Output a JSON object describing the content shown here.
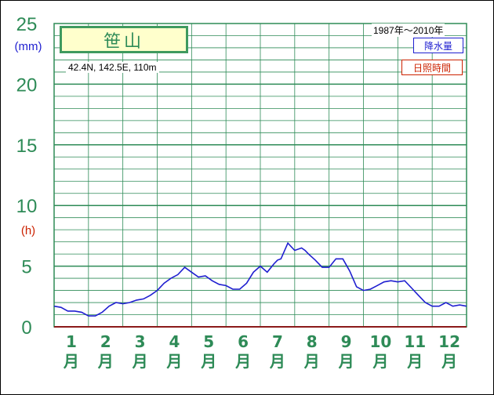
{
  "station": {
    "name": "笹山",
    "coords": "42.4N,  142.5E,  110m",
    "period": "1987年〜2010年"
  },
  "legend": {
    "precipitation": "降水量",
    "sunshine": "日照時間"
  },
  "units": {
    "precip": "(mm)",
    "sunshine": "(h)"
  },
  "colors": {
    "grid": "#2e8b57",
    "precip_line": "#1f1fd0",
    "sunshine_line": "#cc2200",
    "baseline": "#8b1a1a"
  },
  "month_char": "月",
  "chart_data": {
    "type": "line",
    "title": "笹山",
    "xlabel": "",
    "ylabel": "(mm) / (h)",
    "ylim": [
      0,
      25
    ],
    "yticks": [
      "0",
      "5",
      "10",
      "15",
      "20",
      "25"
    ],
    "categories": [
      "1",
      "2",
      "3",
      "4",
      "5",
      "6",
      "7",
      "8",
      "9",
      "10",
      "11",
      "12"
    ],
    "x_range": [
      0.5,
      12.5
    ],
    "grid": true,
    "legend_position": "top-right",
    "series": [
      {
        "name": "降水量",
        "x": [
          0.5,
          0.7,
          0.9,
          1.1,
          1.3,
          1.5,
          1.7,
          1.9,
          2.1,
          2.3,
          2.5,
          2.7,
          2.9,
          3.1,
          3.3,
          3.5,
          3.7,
          3.9,
          4.1,
          4.3,
          4.5,
          4.7,
          4.9,
          5.1,
          5.3,
          5.5,
          5.7,
          5.9,
          6.1,
          6.3,
          6.5,
          6.7,
          6.9,
          7.0,
          7.1,
          7.3,
          7.5,
          7.7,
          7.8,
          7.9,
          8.1,
          8.3,
          8.5,
          8.7,
          8.9,
          9.1,
          9.3,
          9.5,
          9.7,
          9.9,
          10.1,
          10.3,
          10.5,
          10.7,
          10.9,
          11.1,
          11.3,
          11.5,
          11.7,
          11.9,
          12.1,
          12.3,
          12.5
        ],
        "values": [
          1.7,
          1.6,
          1.3,
          1.3,
          1.2,
          0.9,
          0.9,
          1.2,
          1.7,
          2.0,
          1.9,
          2.0,
          2.2,
          2.3,
          2.6,
          3.0,
          3.6,
          4.0,
          4.3,
          4.9,
          4.5,
          4.1,
          4.2,
          3.8,
          3.5,
          3.4,
          3.1,
          3.1,
          3.6,
          4.5,
          5.0,
          4.5,
          5.2,
          5.5,
          5.6,
          6.9,
          6.3,
          6.5,
          6.3,
          6.0,
          5.5,
          4.9,
          4.9,
          5.6,
          5.6,
          4.6,
          3.3,
          3.0,
          3.1,
          3.4,
          3.7,
          3.8,
          3.7,
          3.8,
          3.2,
          2.6,
          2.0,
          1.7,
          1.7,
          2.0,
          1.7,
          1.8,
          1.7
        ]
      }
    ]
  }
}
